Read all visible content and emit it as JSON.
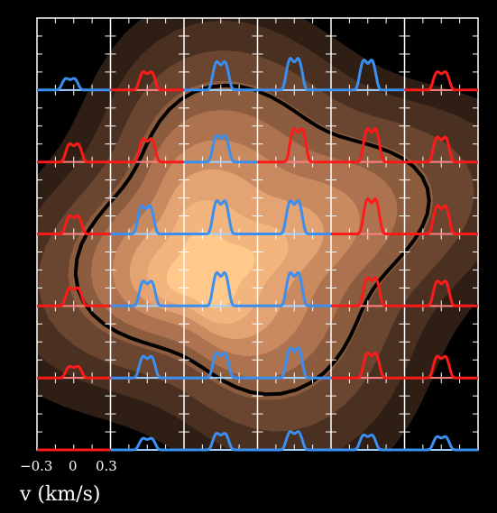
{
  "chart_data": {
    "type": "line",
    "description_type": "grid of line profiles over filled contour map",
    "grid_rows": 6,
    "grid_cols": 6,
    "xlabel": "v (km/s)",
    "tick_labels": [
      "−0.3",
      "0",
      "0.3"
    ],
    "tick_values": [
      -0.3,
      0,
      0.3
    ],
    "colors": {
      "background": "#000000",
      "frame": "#ffffff",
      "profile_blue": "#3a8ff0",
      "profile_red": "#ff1a1a",
      "baseline_blue": "#9fd0ff",
      "baseline_red": "#ff7f7f",
      "contour_outline": "#000000",
      "contour_levels": [
        "#2e1e14",
        "#4a3020",
        "#6a4530",
        "#8c5c3e",
        "#ad7350",
        "#c98a60",
        "#e3a372",
        "#f2b57e",
        "#ffc98c"
      ]
    },
    "profile_colors": [
      [
        "blue",
        "red",
        "blue",
        "blue",
        "blue",
        "red"
      ],
      [
        "red",
        "red",
        "blue",
        "red",
        "red",
        "red"
      ],
      [
        "red",
        "blue",
        "blue",
        "blue",
        "red",
        "red"
      ],
      [
        "red",
        "blue",
        "blue",
        "blue",
        "red",
        "red"
      ],
      [
        "red",
        "blue",
        "blue",
        "blue",
        "red",
        "red"
      ],
      [
        "red",
        "blue",
        "blue",
        "blue",
        "blue",
        "blue"
      ]
    ],
    "profile_peaks": [
      [
        0.35,
        0.55,
        0.85,
        0.95,
        0.9,
        0.55
      ],
      [
        0.55,
        0.7,
        0.8,
        1.0,
        1.0,
        0.75
      ],
      [
        0.55,
        0.85,
        1.0,
        1.0,
        1.05,
        0.85
      ],
      [
        0.55,
        0.75,
        1.0,
        1.0,
        0.85,
        0.75
      ],
      [
        0.35,
        0.65,
        0.75,
        0.9,
        0.75,
        0.65
      ],
      [
        0.0,
        0.35,
        0.5,
        0.55,
        0.45,
        0.4
      ]
    ],
    "profile_velocity_offset": [
      [
        -0.05,
        0.0,
        0.0,
        0.0,
        0.0,
        0.0
      ],
      [
        0.0,
        0.0,
        0.0,
        0.05,
        0.05,
        0.0
      ],
      [
        0.0,
        -0.02,
        0.0,
        0.0,
        0.05,
        0.0
      ],
      [
        0.0,
        0.0,
        0.0,
        0.0,
        0.05,
        0.0
      ],
      [
        0.0,
        0.0,
        0.0,
        0.0,
        0.05,
        0.0
      ],
      [
        0.0,
        0.0,
        0.0,
        0.0,
        0.0,
        0.0
      ]
    ]
  }
}
